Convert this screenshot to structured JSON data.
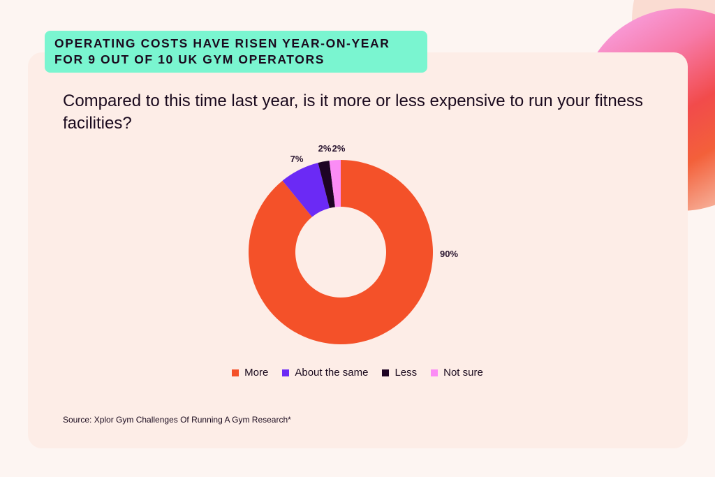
{
  "badge": {
    "line1": "OPERATING COSTS HAVE RISEN YEAR-ON-YEAR",
    "line2": "FOR 9 OUT OF 10 UK GYM OPERATORS"
  },
  "question": "Compared to this time last year, is it more or less expensive to run your fitness facilities?",
  "source": "Source: Xplor Gym Challenges Of Running A Gym Research*",
  "chart_data": {
    "type": "pie",
    "variant": "donut",
    "categories": [
      "More",
      "About the same",
      "Less",
      "Not sure"
    ],
    "values": [
      90,
      7,
      2,
      2
    ],
    "labels": [
      "90%",
      "7%",
      "2%",
      "2%"
    ],
    "colors": [
      "#f45129",
      "#6b2af5",
      "#1e0424",
      "#fb8cf5"
    ],
    "legend_position": "bottom"
  }
}
